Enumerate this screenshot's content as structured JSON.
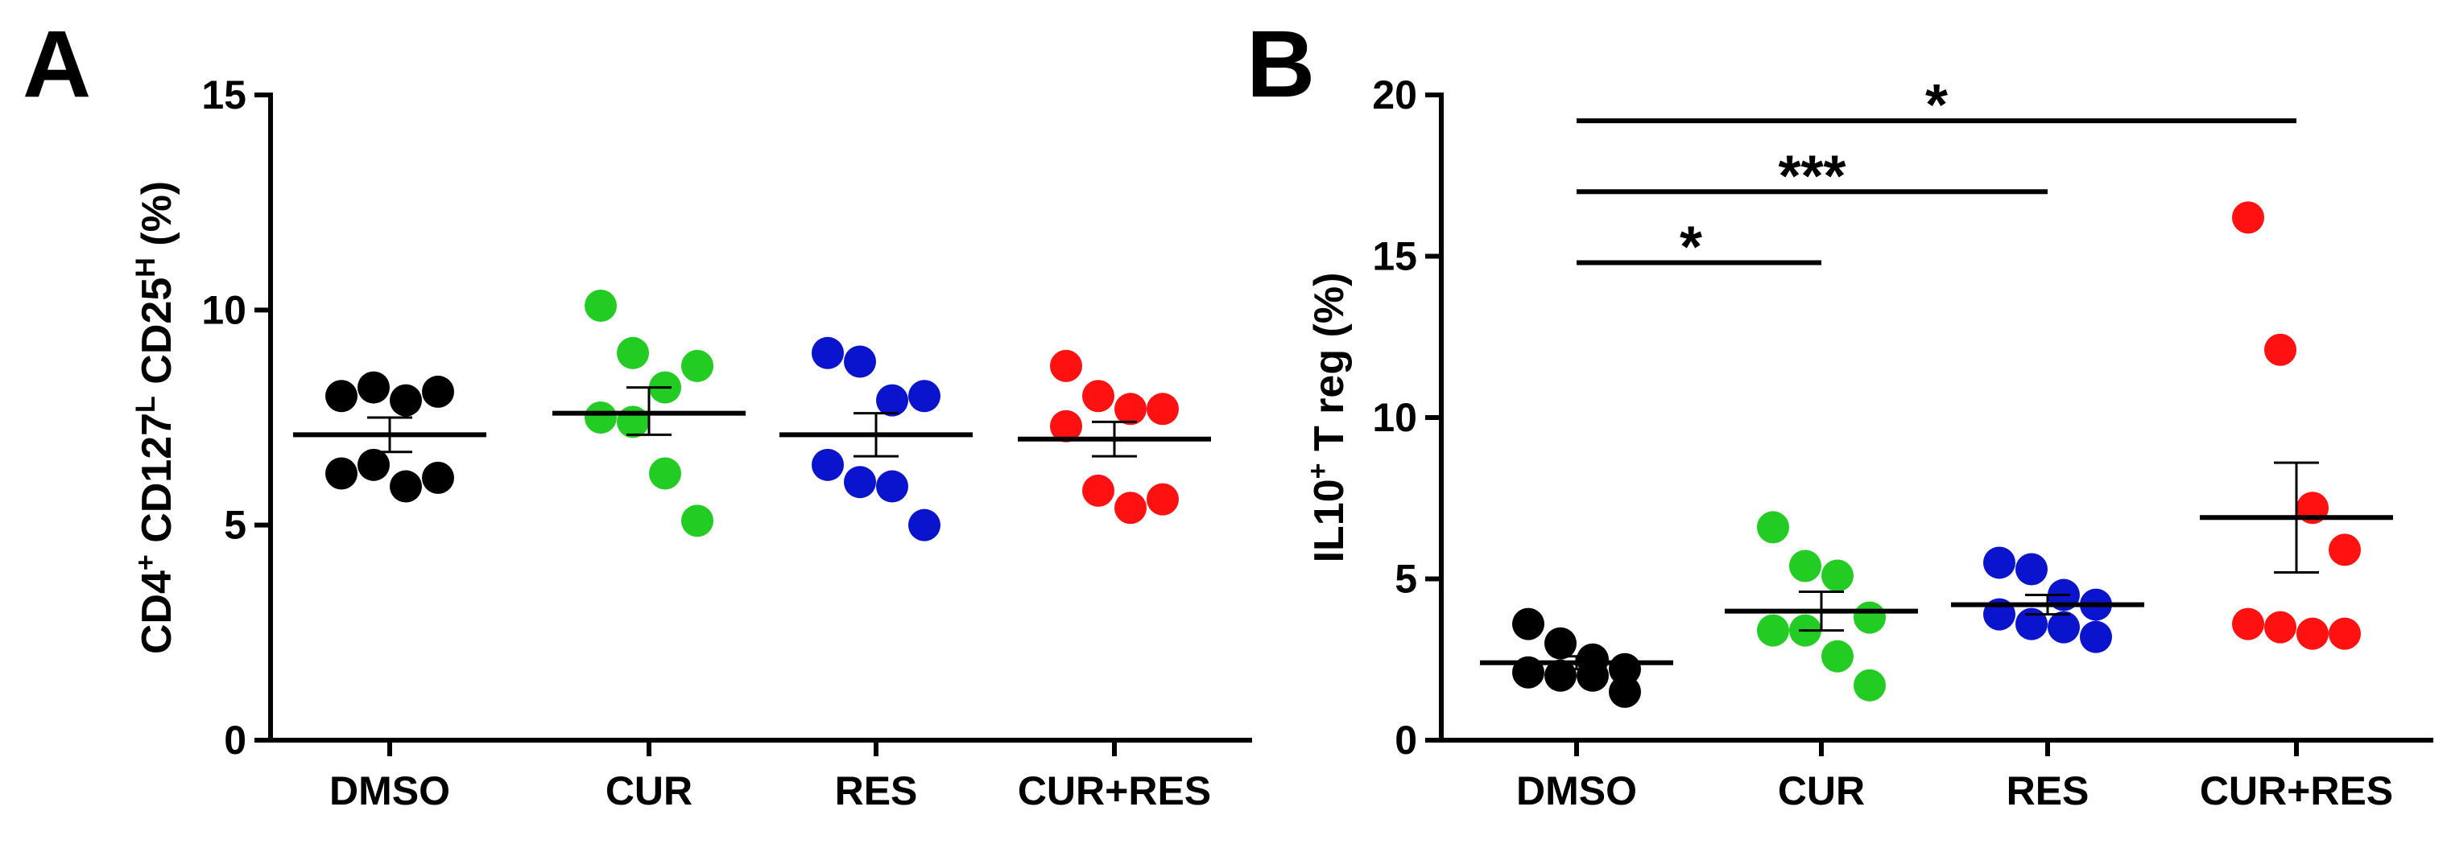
{
  "chart_data": [
    {
      "panel_label": "A",
      "type": "scatter",
      "ylabel": {
        "parts": [
          {
            "text": "CD4",
            "sup": "+"
          },
          {
            "text": " CD127",
            "sup": "L"
          },
          {
            "text": " CD25",
            "sup": "H"
          },
          {
            "text": " (%)"
          }
        ]
      },
      "ylim": [
        0,
        15
      ],
      "yticks": [
        "0",
        "5",
        "10",
        "15"
      ],
      "yticks_values": [
        0,
        5,
        10,
        15
      ],
      "categories": [
        "DMSO",
        "CUR",
        "RES",
        "CUR+RES"
      ],
      "groups": [
        {
          "name": "DMSO",
          "color": "#000000",
          "values": [
            8.0,
            8.2,
            7.9,
            8.1,
            6.2,
            6.4,
            5.9,
            6.1
          ],
          "mean": 7.1,
          "sem": [
            6.7,
            7.5
          ]
        },
        {
          "name": "CUR",
          "color": "#22cc22",
          "values": [
            10.1,
            9.0,
            8.2,
            8.7,
            7.5,
            7.4,
            6.2,
            5.1
          ],
          "mean": 7.6,
          "sem": [
            7.1,
            8.2
          ]
        },
        {
          "name": "RES",
          "color": "#0a14cc",
          "values": [
            9.0,
            8.8,
            7.9,
            8.0,
            6.4,
            6.0,
            5.9,
            5.0
          ],
          "mean": 7.1,
          "sem": [
            6.6,
            7.6
          ]
        },
        {
          "name": "CUR+RES",
          "color": "#ff1111",
          "values": [
            8.7,
            8.0,
            7.7,
            7.7,
            7.3,
            5.8,
            5.4,
            5.6
          ],
          "mean": 7.0,
          "sem": [
            6.6,
            7.4
          ]
        }
      ],
      "significance": []
    },
    {
      "panel_label": "B",
      "type": "scatter",
      "ylabel": {
        "parts": [
          {
            "text": "IL10",
            "sup": "+"
          },
          {
            "text": " T reg (%)"
          }
        ]
      },
      "ylim": [
        0,
        20
      ],
      "yticks": [
        "0",
        "5",
        "10",
        "15",
        "20"
      ],
      "yticks_values": [
        0,
        5,
        10,
        15,
        20
      ],
      "categories": [
        "DMSO",
        "CUR",
        "RES",
        "CUR+RES"
      ],
      "groups": [
        {
          "name": "DMSO",
          "color": "#000000",
          "values": [
            3.6,
            3.0,
            2.5,
            2.2,
            2.1,
            2.0,
            2.0,
            1.5
          ],
          "mean": 2.4,
          "sem": [
            2.2,
            2.6
          ]
        },
        {
          "name": "CUR",
          "color": "#22cc22",
          "values": [
            6.6,
            5.4,
            5.1,
            3.8,
            3.4,
            3.4,
            2.6,
            1.7
          ],
          "mean": 4.0,
          "sem": [
            3.4,
            4.6
          ]
        },
        {
          "name": "RES",
          "color": "#0a14cc",
          "values": [
            5.5,
            5.3,
            4.5,
            4.2,
            3.9,
            3.6,
            3.5,
            3.2
          ],
          "mean": 4.2,
          "sem": [
            3.9,
            4.5
          ]
        },
        {
          "name": "CUR+RES",
          "color": "#ff1111",
          "values": [
            16.2,
            12.1,
            7.2,
            5.9,
            3.6,
            3.5,
            3.3,
            3.3
          ],
          "mean": 6.9,
          "sem": [
            5.2,
            8.6
          ]
        }
      ],
      "significance": [
        {
          "from": "DMSO",
          "to": "CUR",
          "y": 14.8,
          "label": "*"
        },
        {
          "from": "DMSO",
          "to": "RES",
          "y": 17.0,
          "label": "***"
        },
        {
          "from": "DMSO",
          "to": "CUR+RES",
          "y": 19.2,
          "label": "*"
        }
      ]
    }
  ]
}
